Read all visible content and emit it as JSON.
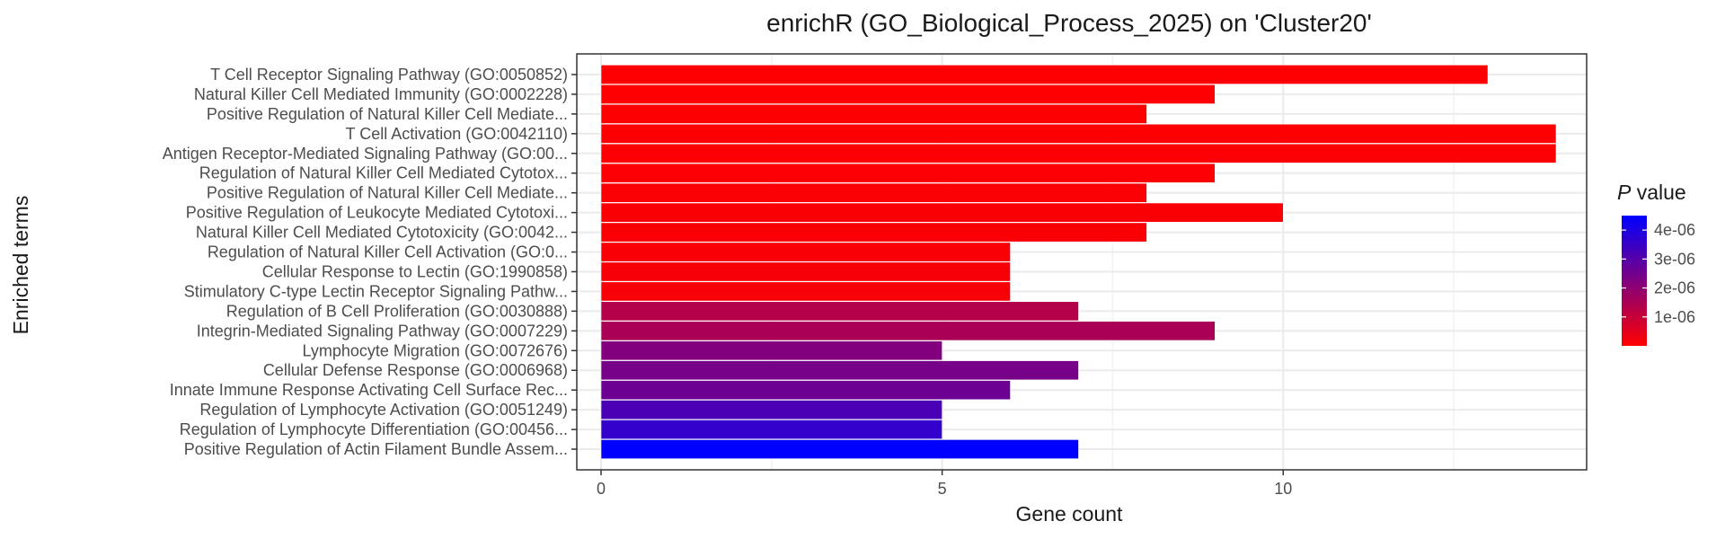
{
  "chart_data": {
    "type": "bar",
    "orientation": "horizontal",
    "title": "enrichR (GO_Biological_Process_2025) on 'Cluster20'",
    "xlabel": "Gene count",
    "ylabel": "Enriched terms",
    "xlim": [
      0,
      14.7
    ],
    "xticks": [
      0,
      5,
      10
    ],
    "grid": true,
    "categories": [
      "T Cell Receptor Signaling Pathway (GO:0050852)",
      "Natural Killer Cell Mediated Immunity (GO:0002228)",
      "Positive Regulation of Natural Killer Cell Mediate...",
      "T Cell Activation (GO:0042110)",
      "Antigen Receptor-Mediated Signaling Pathway (GO:00...",
      "Regulation of Natural Killer Cell Mediated Cytotox...",
      "Positive Regulation of Natural Killer Cell Mediate...",
      "Positive Regulation of Leukocyte Mediated Cytotoxi...",
      "Natural Killer Cell Mediated Cytotoxicity (GO:0042...",
      "Regulation of Natural Killer Cell Activation (GO:0...",
      "Cellular Response to Lectin (GO:1990858)",
      "Stimulatory C-type Lectin Receptor Signaling Pathw...",
      "Regulation of B Cell Proliferation (GO:0030888)",
      "Integrin-Mediated Signaling Pathway (GO:0007229)",
      "Lymphocyte Migration (GO:0072676)",
      "Cellular Defense Response (GO:0006968)",
      "Innate Immune Response Activating Cell Surface Rec...",
      "Regulation of Lymphocyte Activation (GO:0051249)",
      "Regulation of Lymphocyte Differentiation (GO:00456...",
      "Positive Regulation of Actin Filament Bundle Assem..."
    ],
    "values": [
      13,
      9,
      8,
      14,
      14,
      9,
      8,
      10,
      8,
      6,
      6,
      6,
      7,
      9,
      5,
      7,
      6,
      5,
      5,
      7
    ],
    "p_values": [
      1e-08,
      2e-08,
      3e-08,
      4e-08,
      5e-08,
      6e-08,
      7e-08,
      8e-08,
      9e-08,
      1e-07,
      1.2e-07,
      1.4e-07,
      1.3e-06,
      1.5e-06,
      2.2e-06,
      2.4e-06,
      2.6e-06,
      3.2e-06,
      3.6e-06,
      4.5e-06
    ],
    "legend": {
      "title_italic": "P",
      "title_rest": " value",
      "position": "right",
      "colors": [
        "#ff0000",
        "#0000ff"
      ],
      "range": [
        0.0,
        4.5e-06
      ],
      "ticks": [
        {
          "value": 1e-06,
          "label": "1e-06"
        },
        {
          "value": 2e-06,
          "label": "2e-06"
        },
        {
          "value": 3e-06,
          "label": "3e-06"
        },
        {
          "value": 4e-06,
          "label": "4e-06"
        }
      ]
    }
  }
}
